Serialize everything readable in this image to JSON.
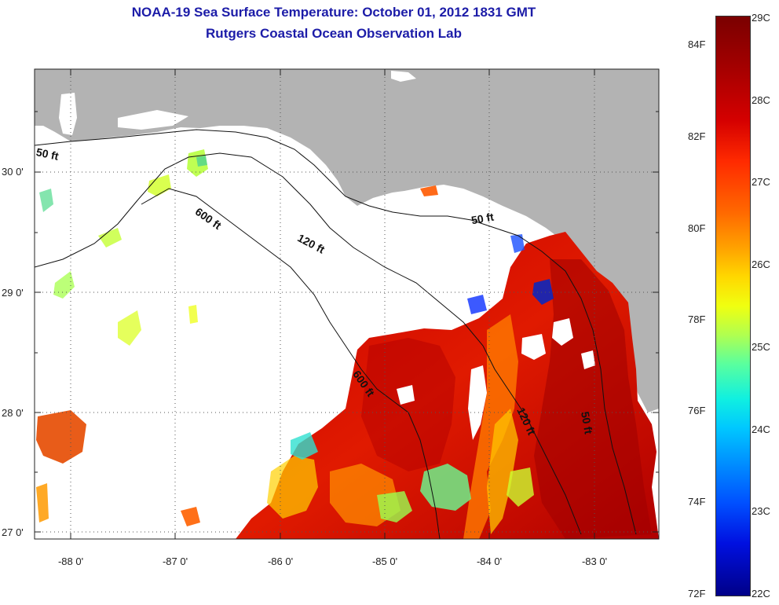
{
  "header": {
    "title": "NOAA-19 Sea Surface Temperature:  October 01, 2012 1831 GMT",
    "subtitle": "Rutgers Coastal Ocean Observation Lab"
  },
  "axes": {
    "lat_labels": [
      "30 0'",
      "29 0'",
      "28 0'",
      "27 0'"
    ],
    "lon_labels": [
      "-88 0'",
      "-87 0'",
      "-86 0'",
      "-85 0'",
      "-84 0'",
      "-83 0'"
    ]
  },
  "contours": {
    "c50_west": "50 ft",
    "c600_a": "600 ft",
    "c120_a": "120 ft",
    "c50_east": "50 ft",
    "c600_b": "600 ft",
    "c120_b": "120 ft",
    "c50_b": "50 ft"
  },
  "colorbar": {
    "f_labels": [
      "84F",
      "82F",
      "80F",
      "78F",
      "76F",
      "74F",
      "72F"
    ],
    "c_labels": [
      "29C",
      "28C",
      "27C",
      "26C",
      "25C",
      "24C",
      "23C",
      "22C"
    ]
  },
  "colors": {
    "land": "#b3b3b3",
    "water_nodata": "#ffffff",
    "title_color": "#1c1ca8"
  }
}
